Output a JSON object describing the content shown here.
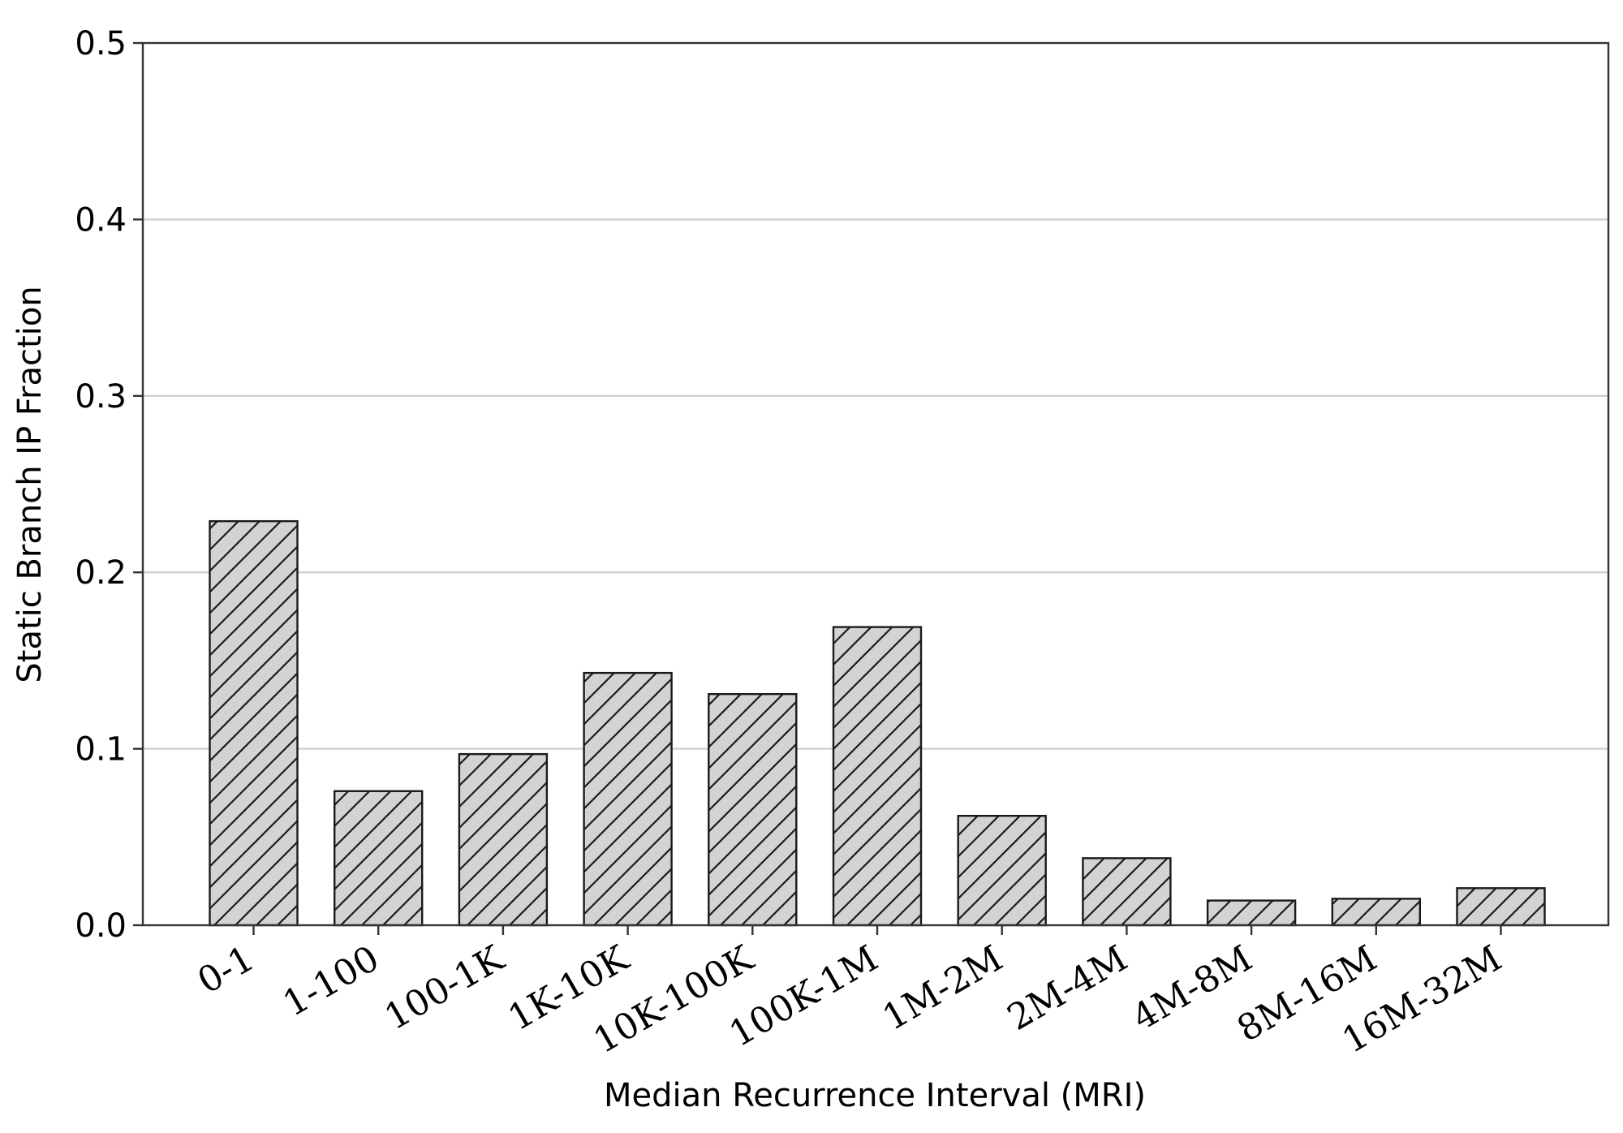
{
  "chart_data": {
    "type": "bar",
    "title": "",
    "xlabel": "Median Recurrence Interval (MRI)",
    "ylabel": "Static Branch IP Fraction",
    "ylim": [
      0,
      0.5
    ],
    "yticks": [
      "0.0",
      "0.1",
      "0.2",
      "0.3",
      "0.4",
      "0.5"
    ],
    "yticks_values": [
      0.0,
      0.1,
      0.2,
      0.3,
      0.4,
      0.5
    ],
    "grid": "horizontal",
    "categories": [
      "0-1",
      "1-100",
      "100-1K",
      "1K-10K",
      "10K-100K",
      "100K-1M",
      "1M-2M",
      "2M-4M",
      "4M-8M",
      "8M-16M",
      "16M-32M"
    ],
    "values": [
      0.229,
      0.076,
      0.097,
      0.143,
      0.131,
      0.169,
      0.062,
      0.038,
      0.014,
      0.015,
      0.021
    ],
    "bar_color": "#d3d3d3",
    "edge_color": "#1a1a1a",
    "hatch": "diagonal"
  }
}
